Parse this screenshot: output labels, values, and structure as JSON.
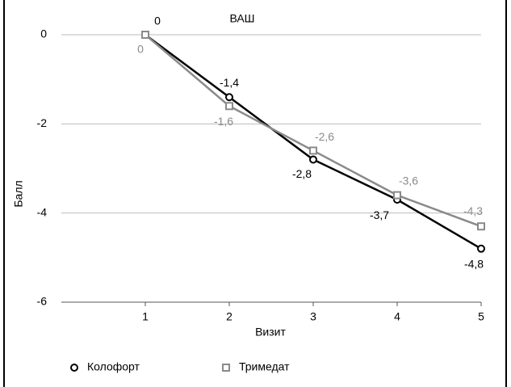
{
  "chart_data": {
    "type": "line",
    "title": "ВАШ",
    "xlabel": "Визит",
    "ylabel": "Балл",
    "x": [
      1,
      2,
      3,
      4,
      5
    ],
    "series": [
      {
        "name": "Колофорт",
        "color": "#000000",
        "marker": "circle",
        "values": [
          0,
          -1.4,
          -2.8,
          -3.7,
          -4.8
        ],
        "value_labels": [
          "0",
          "-1,4",
          "-2,8",
          "-3,7",
          "-4,8"
        ]
      },
      {
        "name": "Тримедат",
        "color": "#8a8a8a",
        "marker": "square",
        "values": [
          0,
          -1.6,
          -2.6,
          -3.6,
          -4.3
        ],
        "value_labels": [
          "0",
          "-1,6",
          "-2,6",
          "-3,6",
          "-4,3"
        ]
      }
    ],
    "xlim": [
      0,
      5
    ],
    "xticks": [
      1,
      2,
      3,
      4,
      5
    ],
    "ylim": [
      -6,
      0
    ],
    "yticks": [
      0,
      -2,
      -4,
      -6
    ],
    "grid": true,
    "legend": "bottom-left"
  }
}
